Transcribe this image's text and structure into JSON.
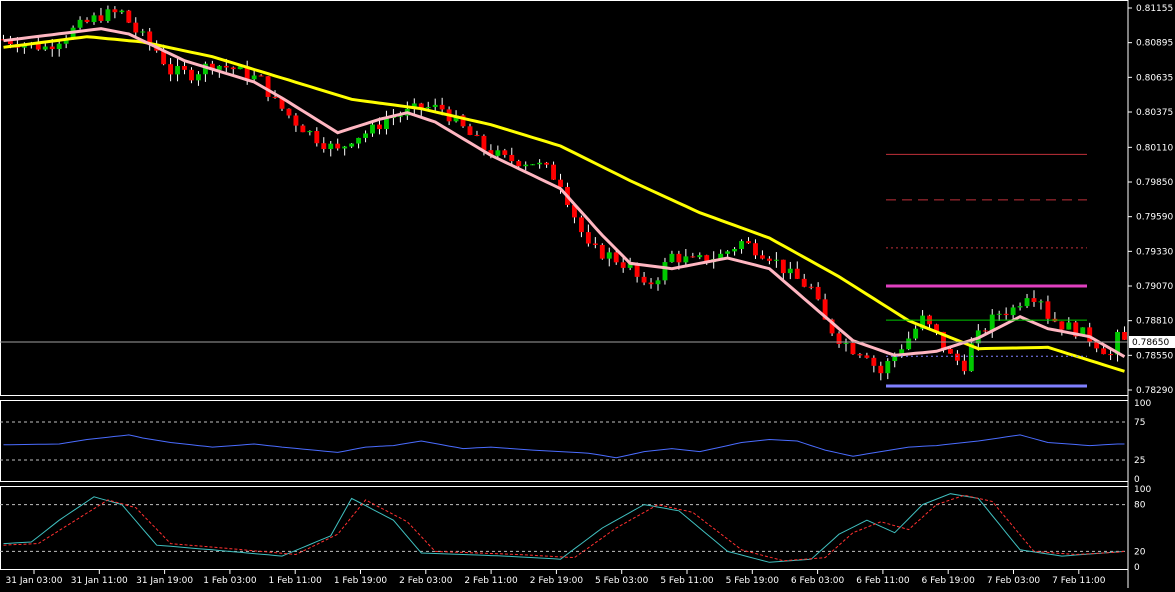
{
  "chart_data": [
    {
      "type": "candlestick",
      "symbol_pair_hint": "",
      "price_axis_ticks": [
        "0.81155",
        "0.80895",
        "0.80635",
        "0.80375",
        "0.80110",
        "0.79850",
        "0.79590",
        "0.79330",
        "0.79070",
        "0.78810",
        "0.78550",
        "0.78290"
      ],
      "price_axis_values": [
        0.81155,
        0.80895,
        0.80635,
        0.80375,
        0.8011,
        0.7985,
        0.7959,
        0.7933,
        0.7907,
        0.7881,
        0.7855,
        0.7829
      ],
      "ylim": [
        0.7826,
        0.812
      ],
      "current_price_label": "0.78650",
      "current_price": 0.7865,
      "time_axis_labels": [
        "31 Jan 03:00",
        "31 Jan 11:00",
        "31 Jan 19:00",
        "1 Feb 03:00",
        "1 Feb 11:00",
        "1 Feb 19:00",
        "2 Feb 03:00",
        "2 Feb 11:00",
        "2 Feb 19:00",
        "5 Feb 03:00",
        "5 Feb 11:00",
        "5 Feb 19:00",
        "6 Feb 03:00",
        "6 Feb 11:00",
        "6 Feb 19:00",
        "7 Feb 03:00",
        "7 Feb 11:00"
      ],
      "colors": {
        "background": "#000000",
        "bull": "#00c800",
        "bear": "#ff0000",
        "ma_slow": "#ffff00",
        "ma_fast": "#ffb6c1",
        "price_line": "#a0a0a0",
        "axis_text": "#ffffff"
      },
      "close_path": [
        [
          0,
          0.8092
        ],
        [
          6,
          0.8086
        ],
        [
          10,
          0.8099
        ],
        [
          14,
          0.811
        ],
        [
          17,
          0.8112
        ],
        [
          19,
          0.8098
        ],
        [
          22,
          0.8084
        ],
        [
          24,
          0.8068
        ],
        [
          27,
          0.8066
        ],
        [
          30,
          0.8074
        ],
        [
          33,
          0.807
        ],
        [
          37,
          0.8061
        ],
        [
          39,
          0.8045
        ],
        [
          42,
          0.803
        ],
        [
          45,
          0.8018
        ],
        [
          48,
          0.8008
        ],
        [
          50,
          0.8018
        ],
        [
          53,
          0.8024
        ],
        [
          55,
          0.8033
        ],
        [
          58,
          0.8037
        ],
        [
          60,
          0.8041
        ],
        [
          63,
          0.804
        ],
        [
          66,
          0.8025
        ],
        [
          69,
          0.801
        ],
        [
          72,
          0.8002
        ],
        [
          76,
          0.8
        ],
        [
          78,
          0.7994
        ],
        [
          80,
          0.7985
        ],
        [
          82,
          0.796
        ],
        [
          84,
          0.7935
        ],
        [
          87,
          0.793
        ],
        [
          90,
          0.7921
        ],
        [
          92,
          0.7905
        ],
        [
          94,
          0.7915
        ],
        [
          96,
          0.793
        ],
        [
          99,
          0.7925
        ],
        [
          103,
          0.793
        ],
        [
          106,
          0.794
        ],
        [
          108,
          0.7935
        ],
        [
          110,
          0.793
        ],
        [
          113,
          0.7915
        ],
        [
          116,
          0.7905
        ],
        [
          118,
          0.788
        ],
        [
          120,
          0.7868
        ],
        [
          122,
          0.786
        ],
        [
          124,
          0.7857
        ],
        [
          125,
          0.7848
        ],
        [
          126,
          0.7842
        ],
        [
          128,
          0.7856
        ],
        [
          130,
          0.7868
        ],
        [
          132,
          0.7882
        ],
        [
          134,
          0.787
        ],
        [
          136,
          0.7854
        ],
        [
          138,
          0.7848
        ],
        [
          139,
          0.7862
        ],
        [
          141,
          0.7876
        ],
        [
          143,
          0.7887
        ],
        [
          145,
          0.789
        ],
        [
          146,
          0.7896
        ],
        [
          147,
          0.7902
        ],
        [
          149,
          0.7898
        ],
        [
          150,
          0.7885
        ],
        [
          152,
          0.7878
        ],
        [
          154,
          0.7874
        ],
        [
          156,
          0.7868
        ],
        [
          158,
          0.786
        ],
        [
          159,
          0.7855
        ],
        [
          160,
          0.7868
        ],
        [
          161,
          0.7865
        ]
      ],
      "moving_averages": [
        {
          "color": "#ffff00",
          "points": [
            [
              0,
              0.8086
            ],
            [
              12,
              0.8094
            ],
            [
              20,
              0.809
            ],
            [
              30,
              0.8079
            ],
            [
              40,
              0.8063
            ],
            [
              50,
              0.8047
            ],
            [
              60,
              0.804
            ],
            [
              70,
              0.8028
            ],
            [
              80,
              0.8012
            ],
            [
              90,
              0.7986
            ],
            [
              100,
              0.7962
            ],
            [
              110,
              0.7943
            ],
            [
              120,
              0.7914
            ],
            [
              130,
              0.7881
            ],
            [
              140,
              0.786
            ],
            [
              150,
              0.7861
            ],
            [
              161,
              0.7843
            ]
          ]
        },
        {
          "color": "#ffb6c1",
          "points": [
            [
              0,
              0.8091
            ],
            [
              14,
              0.81
            ],
            [
              18,
              0.8096
            ],
            [
              26,
              0.8076
            ],
            [
              36,
              0.806
            ],
            [
              40,
              0.8048
            ],
            [
              48,
              0.8022
            ],
            [
              54,
              0.8032
            ],
            [
              58,
              0.8037
            ],
            [
              62,
              0.803
            ],
            [
              70,
              0.8005
            ],
            [
              80,
              0.798
            ],
            [
              86,
              0.7945
            ],
            [
              90,
              0.7924
            ],
            [
              96,
              0.792
            ],
            [
              104,
              0.7928
            ],
            [
              110,
              0.792
            ],
            [
              116,
              0.7893
            ],
            [
              122,
              0.7866
            ],
            [
              128,
              0.7855
            ],
            [
              134,
              0.7858
            ],
            [
              140,
              0.7868
            ],
            [
              146,
              0.7884
            ],
            [
              150,
              0.7875
            ],
            [
              156,
              0.7869
            ],
            [
              161,
              0.7854
            ]
          ]
        }
      ],
      "levels": [
        {
          "price": 0.80057,
          "style": "solid",
          "color": "#c0303a",
          "width": 1
        },
        {
          "price": 0.79716,
          "style": "dashed",
          "color": "#c0303a",
          "width": 1
        },
        {
          "price": 0.79356,
          "style": "dotted",
          "color": "#c0303a",
          "width": 1
        },
        {
          "price": 0.7907,
          "style": "solid",
          "color": "#e040c0",
          "width": 3
        },
        {
          "price": 0.78814,
          "style": "solid",
          "color": "#00c800",
          "width": 1
        },
        {
          "price": 0.78543,
          "style": "dotted",
          "color": "#8080ff",
          "width": 1
        },
        {
          "price": 0.7832,
          "style": "solid",
          "color": "#8080ff",
          "width": 3
        }
      ]
    },
    {
      "type": "line",
      "indicator_hint": "",
      "ylim": [
        0,
        100
      ],
      "y_ticks": [
        "100",
        "75",
        "25",
        "0"
      ],
      "y_tick_values": [
        100,
        75,
        25,
        0
      ],
      "levels": [
        75,
        25
      ],
      "series": [
        {
          "color": "#4a6cff",
          "points": [
            [
              0,
              45
            ],
            [
              8,
              46
            ],
            [
              12,
              52
            ],
            [
              18,
              58
            ],
            [
              20,
              54
            ],
            [
              24,
              48
            ],
            [
              30,
              42
            ],
            [
              36,
              46
            ],
            [
              40,
              42
            ],
            [
              48,
              35
            ],
            [
              52,
              42
            ],
            [
              56,
              44
            ],
            [
              60,
              50
            ],
            [
              66,
              40
            ],
            [
              70,
              42
            ],
            [
              76,
              38
            ],
            [
              80,
              36
            ],
            [
              84,
              34
            ],
            [
              88,
              28
            ],
            [
              92,
              36
            ],
            [
              96,
              40
            ],
            [
              100,
              36
            ],
            [
              106,
              48
            ],
            [
              110,
              52
            ],
            [
              114,
              50
            ],
            [
              118,
              38
            ],
            [
              122,
              30
            ],
            [
              126,
              36
            ],
            [
              130,
              42
            ],
            [
              134,
              44
            ],
            [
              140,
              50
            ],
            [
              146,
              58
            ],
            [
              150,
              48
            ],
            [
              156,
              44
            ],
            [
              160,
              46
            ],
            [
              161,
              46
            ]
          ]
        }
      ]
    },
    {
      "type": "line",
      "indicator_hint": "",
      "ylim": [
        0,
        100
      ],
      "y_ticks": [
        "100",
        "80",
        "20",
        "0"
      ],
      "y_tick_values": [
        100,
        80,
        20,
        0
      ],
      "levels": [
        80,
        20
      ],
      "series": [
        {
          "color": "#40c0c0",
          "style": "solid",
          "points": [
            [
              0,
              30
            ],
            [
              4,
              32
            ],
            [
              8,
              60
            ],
            [
              13,
              90
            ],
            [
              17,
              80
            ],
            [
              22,
              28
            ],
            [
              30,
              22
            ],
            [
              40,
              14
            ],
            [
              47,
              40
            ],
            [
              50,
              88
            ],
            [
              56,
              60
            ],
            [
              60,
              18
            ],
            [
              72,
              14
            ],
            [
              80,
              10
            ],
            [
              86,
              50
            ],
            [
              92,
              80
            ],
            [
              97,
              72
            ],
            [
              104,
              20
            ],
            [
              110,
              6
            ],
            [
              116,
              10
            ],
            [
              120,
              42
            ],
            [
              124,
              60
            ],
            [
              128,
              44
            ],
            [
              132,
              80
            ],
            [
              136,
              94
            ],
            [
              140,
              88
            ],
            [
              146,
              22
            ],
            [
              152,
              14
            ],
            [
              158,
              18
            ],
            [
              161,
              20
            ]
          ]
        },
        {
          "color": "#ff3030",
          "style": "dashed",
          "points": [
            [
              0,
              28
            ],
            [
              5,
              30
            ],
            [
              10,
              58
            ],
            [
              15,
              86
            ],
            [
              19,
              76
            ],
            [
              24,
              30
            ],
            [
              32,
              24
            ],
            [
              42,
              16
            ],
            [
              48,
              42
            ],
            [
              52,
              86
            ],
            [
              58,
              58
            ],
            [
              62,
              20
            ],
            [
              74,
              16
            ],
            [
              82,
              12
            ],
            [
              88,
              50
            ],
            [
              94,
              80
            ],
            [
              99,
              70
            ],
            [
              106,
              22
            ],
            [
              112,
              8
            ],
            [
              118,
              12
            ],
            [
              122,
              44
            ],
            [
              126,
              58
            ],
            [
              130,
              48
            ],
            [
              134,
              80
            ],
            [
              138,
              92
            ],
            [
              142,
              84
            ],
            [
              148,
              20
            ],
            [
              154,
              16
            ],
            [
              160,
              19
            ],
            [
              161,
              20
            ]
          ]
        }
      ]
    }
  ]
}
